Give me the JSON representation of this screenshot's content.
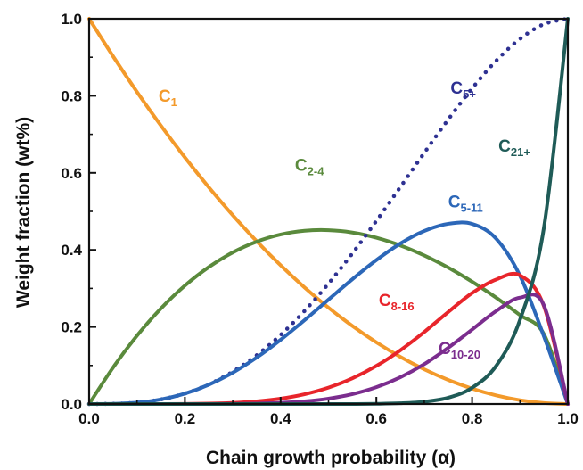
{
  "chart_data": {
    "type": "line",
    "xlabel": "Chain growth probability (α)",
    "ylabel": "Weight fraction (wt%)",
    "xlim": [
      0.0,
      1.0
    ],
    "ylim": [
      0.0,
      1.0
    ],
    "x_ticks": [
      "0.0",
      "0.2",
      "0.4",
      "0.6",
      "0.8",
      "1.0"
    ],
    "y_ticks": [
      "0.0",
      "0.2",
      "0.4",
      "0.6",
      "0.8",
      "1.0"
    ],
    "grid": false,
    "legend": "none (inline labels)",
    "x": [
      0.0,
      0.05,
      0.1,
      0.15,
      0.2,
      0.25,
      0.3,
      0.35,
      0.4,
      0.45,
      0.5,
      0.55,
      0.6,
      0.65,
      0.7,
      0.75,
      0.8,
      0.85,
      0.9,
      0.95,
      1.0
    ],
    "series": [
      {
        "name_main": "C",
        "name_sub": "1",
        "color": "#F39A2B",
        "style": "solid",
        "values": [
          1.0,
          0.9025,
          0.81,
          0.7225,
          0.64,
          0.5625,
          0.49,
          0.4225,
          0.36,
          0.3025,
          0.25,
          0.2025,
          0.16,
          0.1225,
          0.09,
          0.0625,
          0.04,
          0.0225,
          0.01,
          0.0025,
          0.0
        ]
      },
      {
        "name_main": "C",
        "name_sub": "2-4",
        "color": "#5A8A3C",
        "style": "solid",
        "values": [
          0.0,
          0.0947,
          0.1773,
          0.2479,
          0.3072,
          0.3555,
          0.3934,
          0.4214,
          0.44,
          0.4497,
          0.4512,
          0.445,
          0.4316,
          0.4116,
          0.3856,
          0.3541,
          0.3174,
          0.2762,
          0.2308,
          0.1814,
          0.0
        ]
      },
      {
        "name_main": "C",
        "name_sub": "5+",
        "color": "#2E3192",
        "style": "dotted",
        "values": [
          0.0,
          0.0005,
          0.0037,
          0.012,
          0.0272,
          0.0508,
          0.0837,
          0.1265,
          0.1792,
          0.2415,
          0.3125,
          0.391,
          0.4752,
          0.563,
          0.6517,
          0.7383,
          0.8192,
          0.8905,
          0.9477,
          0.986,
          1.0
        ]
      },
      {
        "name_main": "C",
        "name_sub": "5-11",
        "color": "#2C67B8",
        "style": "solid",
        "values": [
          0.0,
          0.0005,
          0.0037,
          0.012,
          0.027,
          0.0501,
          0.0814,
          0.1206,
          0.1667,
          0.2176,
          0.271,
          0.324,
          0.3735,
          0.4164,
          0.449,
          0.4677,
          0.4675,
          0.4295,
          0.333,
          0.1755,
          0.0
        ]
      },
      {
        "name_main": "C",
        "name_sub": "8-16",
        "color": "#E8252B",
        "style": "solid",
        "values": [
          0.0,
          0.0,
          0.0,
          0.0001,
          0.0003,
          0.0011,
          0.003,
          0.007,
          0.014,
          0.0254,
          0.0425,
          0.0667,
          0.0989,
          0.1393,
          0.1869,
          0.2386,
          0.288,
          0.323,
          0.334,
          0.254,
          0.0
        ]
      },
      {
        "name_main": "C",
        "name_sub": "10-20",
        "color": "#7B2D8E",
        "style": "solid",
        "values": [
          0.0,
          0.0,
          0.0,
          0.0,
          0.0,
          0.0001,
          0.0004,
          0.0012,
          0.0031,
          0.0069,
          0.014,
          0.0257,
          0.0437,
          0.0694,
          0.1035,
          0.1459,
          0.1932,
          0.241,
          0.276,
          0.256,
          0.0
        ]
      },
      {
        "name_main": "C",
        "name_sub": "21+",
        "color": "#1F5B57",
        "style": "solid",
        "values": [
          0.0,
          0.0,
          0.0,
          0.0,
          0.0,
          0.0,
          0.0,
          0.0,
          0.0,
          0.0,
          0.0,
          0.0001,
          0.0005,
          0.0019,
          0.0059,
          0.0163,
          0.0422,
          0.0985,
          0.2185,
          0.4577,
          1.0
        ]
      }
    ]
  }
}
